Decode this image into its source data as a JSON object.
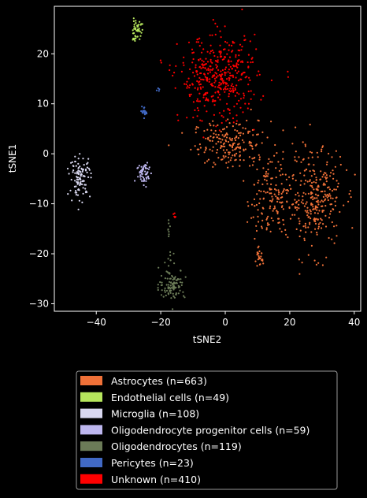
{
  "chart_data": {
    "type": "scatter",
    "title": "",
    "xlabel": "tSNE2",
    "ylabel": "tSNE1",
    "xlim": [
      -53,
      42
    ],
    "ylim": [
      -31.5,
      29.5
    ],
    "xticks": [
      -40,
      -20,
      0,
      20,
      40
    ],
    "yticks": [
      -30,
      -20,
      -10,
      0,
      10,
      20
    ],
    "grid": false,
    "legend_position": "bottom",
    "series": [
      {
        "name": "Astrocytes (n=663)",
        "color": "#F07138",
        "n": 663,
        "clusters": [
          {
            "cx": 2,
            "cy": 2,
            "sx": 6,
            "sy": 2.3,
            "n": 200
          },
          {
            "cx": 14,
            "cy": -9,
            "sx": 3.5,
            "sy": 4,
            "n": 160
          },
          {
            "cx": 28,
            "cy": -9,
            "sx": 4.2,
            "sy": 5,
            "n": 280
          },
          {
            "cx": 10.5,
            "cy": -21,
            "sx": 0.6,
            "sy": 0.8,
            "n": 23
          }
        ]
      },
      {
        "name": "Endothelial cells (n=49)",
        "color": "#B6E65D",
        "n": 49,
        "clusters": [
          {
            "cx": -27.5,
            "cy": 25,
            "sx": 0.9,
            "sy": 0.8,
            "n": 40
          },
          {
            "cx": -28,
            "cy": 22.8,
            "sx": 0.5,
            "sy": 0.4,
            "n": 9
          }
        ]
      },
      {
        "name": "Microglia (n=108)",
        "color": "#D9D8F0",
        "n": 108,
        "clusters": [
          {
            "cx": -45,
            "cy": -4.5,
            "sx": 1.6,
            "sy": 2,
            "n": 108
          }
        ]
      },
      {
        "name": "Oligodendrocyte progenitor cells (n=59)",
        "color": "#BDB6EE",
        "n": 59,
        "clusters": [
          {
            "cx": -25,
            "cy": -4,
            "sx": 1.2,
            "sy": 1.3,
            "n": 59
          }
        ]
      },
      {
        "name": "Oligodendrocytes (n=119)",
        "color": "#6B7B57",
        "n": 119,
        "clusters": [
          {
            "cx": -16.5,
            "cy": -26,
            "sx": 2,
            "sy": 1.5,
            "n": 105
          },
          {
            "cx": -17.5,
            "cy": -15,
            "sx": 0.3,
            "sy": 1.2,
            "n": 8
          },
          {
            "cx": -17,
            "cy": -21,
            "sx": 0.4,
            "sy": 0.6,
            "n": 6
          }
        ]
      },
      {
        "name": "Pericytes (n=23)",
        "color": "#4169C4",
        "n": 23,
        "clusters": [
          {
            "cx": -25,
            "cy": 8.5,
            "sx": 0.4,
            "sy": 0.6,
            "n": 19
          },
          {
            "cx": -21,
            "cy": 12.8,
            "sx": 0.3,
            "sy": 0.2,
            "n": 4
          }
        ]
      },
      {
        "name": "Unknown (n=410)",
        "color": "#FF0000",
        "n": 410,
        "clusters": [
          {
            "cx": -2,
            "cy": 15,
            "sx": 6,
            "sy": 4.2,
            "n": 405
          },
          {
            "cx": -16,
            "cy": -12.5,
            "sx": 0.3,
            "sy": 0.4,
            "n": 5
          }
        ]
      }
    ]
  }
}
